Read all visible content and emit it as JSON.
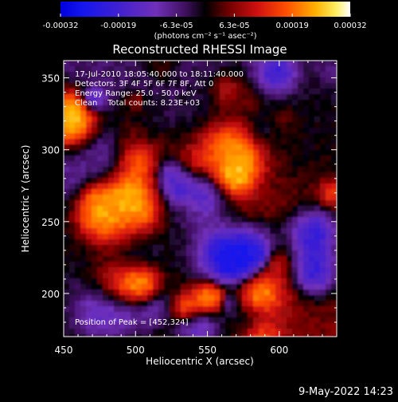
{
  "chart_data": {
    "type": "heatmap",
    "title": "Reconstructed RHESSI Image",
    "xlabel": "Heliocentric X (arcsec)",
    "ylabel": "Heliocentric Y (arcsec)",
    "xlim": [
      450,
      640
    ],
    "ylim": [
      170,
      362
    ],
    "x_ticks": [
      "450",
      "500",
      "550",
      "600"
    ],
    "y_ticks": [
      "200",
      "250",
      "300",
      "350"
    ],
    "x_tick_values": [
      450,
      500,
      550,
      600
    ],
    "y_tick_values": [
      200,
      250,
      300,
      350
    ],
    "colorbar": {
      "min": -0.00032,
      "max": 0.00032,
      "tick_labels": [
        "-0.00032",
        "-0.00019",
        "-6.3e-05",
        "6.3e-05",
        "0.00019",
        "0.00032"
      ],
      "units": "(photons cm⁻² s⁻¹ asec⁻²)"
    },
    "annotations": {
      "time_range": "17-Jul-2010 18:05:40.000 to 18:11:40.000",
      "detectors": "Detectors: 3F 4F 5F 6F 7F 8F, Att 0",
      "energy_range": "Energy Range: 25.0 - 50.0 keV",
      "clean_counts": "Clean    Total counts: 8.23E+03",
      "peak_position": "Position of Peak = [452,324]"
    },
    "peak": {
      "x": 452,
      "y": 324
    },
    "grid": false
  },
  "footer": {
    "date": "9-May-2022 14:23"
  }
}
